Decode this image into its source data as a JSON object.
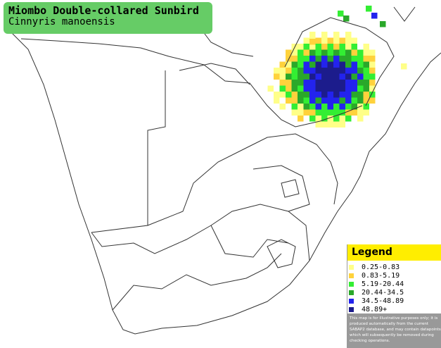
{
  "header": {
    "title": "Miombo Double-collared Sunbird",
    "subtitle": "Cinnyris manoensis"
  },
  "legend": {
    "title": "Legend",
    "items": [
      {
        "label": "0.25-0.83",
        "color": "#ffff88"
      },
      {
        "label": "0.83-5.19",
        "color": "#ffd23c"
      },
      {
        "label": "5.19-20.44",
        "color": "#33ee33"
      },
      {
        "label": "20.44-34.5",
        "color": "#2aa82a"
      },
      {
        "label": "34.5-48.89",
        "color": "#2323ee"
      },
      {
        "label": "48.89+",
        "color": "#1c1c8c"
      }
    ],
    "disclaimer": [
      "This map is for illustrative purposes only; it is",
      "produced automatically from the current",
      "SABAP2 database, and may contain datapoints",
      "which will subsequently be removed during",
      "checking operations."
    ]
  }
}
